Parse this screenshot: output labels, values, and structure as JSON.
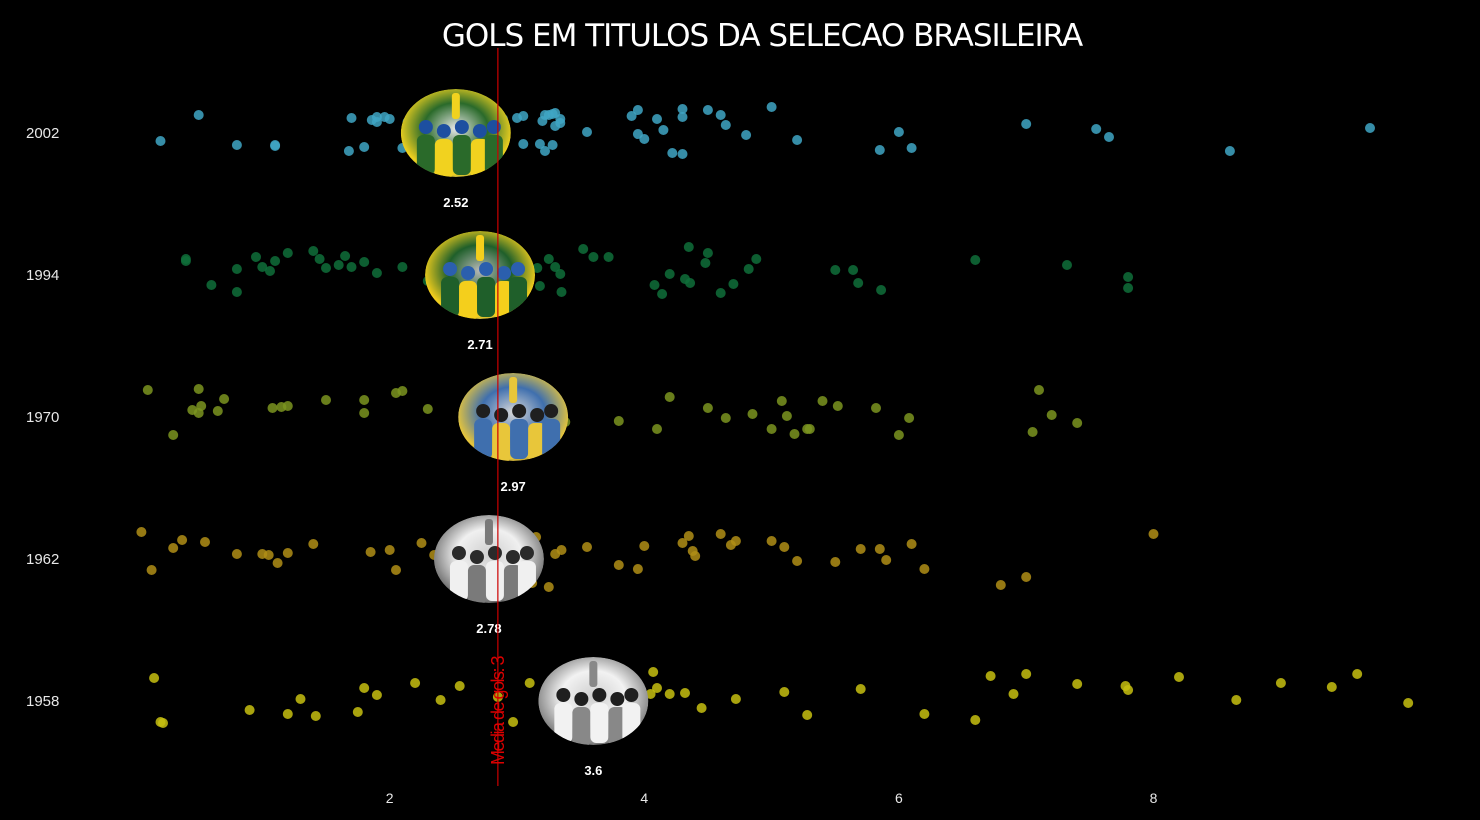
{
  "chart_data": {
    "type": "scatter",
    "title": "GOLS EM TITULOS DA SELECAO BRASILEIRA",
    "x_ticks": [
      2,
      4,
      6,
      8
    ],
    "xlim": [
      -0.55,
      10.25
    ],
    "reference_line": {
      "value": 2.85,
      "label": "Media de gols: 3",
      "color": "#cc0000"
    },
    "series": [
      {
        "name": "2002",
        "color": "#3fa6c4",
        "mean": 2.52,
        "mean_label": "2.52",
        "photo_icon": "trophy-lift-photo-icon",
        "photo_colors": [
          "#2a6a2a",
          "#f1d21f",
          "#1d4fa0",
          "#e9e9e9"
        ],
        "points": [
          [
            0.5,
            -18
          ],
          [
            0.2,
            8
          ],
          [
            0.8,
            12
          ],
          [
            1.7,
            -15
          ],
          [
            1.96,
            -16
          ],
          [
            1.1,
            13
          ],
          [
            1.68,
            18
          ],
          [
            2.0,
            -14
          ],
          [
            1.8,
            14
          ],
          [
            1.9,
            -11
          ],
          [
            2.1,
            15
          ],
          [
            2.2,
            13
          ],
          [
            2.6,
            10
          ],
          [
            2.4,
            14
          ],
          [
            2.3,
            -3
          ],
          [
            2.5,
            11
          ],
          [
            2.7,
            12
          ],
          [
            2.84,
            19
          ],
          [
            3.05,
            11
          ],
          [
            2.83,
            -15
          ],
          [
            3.05,
            -17
          ],
          [
            3.0,
            -15
          ],
          [
            3.3,
            -20
          ],
          [
            2.89,
            -14
          ],
          [
            3.25,
            -18
          ],
          [
            3.28,
            -19
          ],
          [
            3.3,
            -7
          ],
          [
            3.18,
            11
          ],
          [
            2.84,
            14
          ],
          [
            3.22,
            -18
          ],
          [
            3.2,
            -12
          ],
          [
            3.28,
            12
          ],
          [
            3.34,
            -14
          ],
          [
            3.22,
            18
          ],
          [
            3.34,
            -10
          ],
          [
            2.84,
            13
          ],
          [
            1.86,
            -13
          ],
          [
            2.14,
            -11
          ],
          [
            1.9,
            -16
          ],
          [
            1.1,
            12
          ],
          [
            4.3,
            -16
          ],
          [
            4.3,
            -24
          ],
          [
            4.6,
            -18
          ],
          [
            3.55,
            -1
          ],
          [
            2.54,
            21
          ],
          [
            2.54,
            -15
          ],
          [
            4.22,
            20
          ],
          [
            5.0,
            -26
          ],
          [
            4.5,
            -23
          ],
          [
            4.64,
            -8
          ],
          [
            3.95,
            -23
          ],
          [
            4.1,
            -14
          ],
          [
            4.0,
            6
          ],
          [
            4.3,
            21
          ],
          [
            3.95,
            1
          ],
          [
            4.15,
            -3
          ],
          [
            3.9,
            -17
          ],
          [
            6.0,
            -1
          ],
          [
            6.1,
            15
          ],
          [
            4.8,
            2
          ],
          [
            7.0,
            -9
          ],
          [
            5.85,
            17
          ],
          [
            5.2,
            7
          ],
          [
            8.6,
            18
          ],
          [
            9.7,
            -5
          ],
          [
            7.55,
            -4
          ],
          [
            7.65,
            4
          ]
        ]
      },
      {
        "name": "1994",
        "color": "#0f6f3a",
        "mean": 2.71,
        "mean_label": "2.71",
        "photo_icon": "team-celebration-photo-icon",
        "photo_colors": [
          "#1f5f2a",
          "#f4cf1c",
          "#2b5fae",
          "#b9b9b9"
        ],
        "points": [
          [
            0.4,
            -14
          ],
          [
            0.8,
            -6
          ],
          [
            1.2,
            -22
          ],
          [
            1.0,
            -8
          ],
          [
            0.6,
            10
          ],
          [
            1.9,
            -2
          ],
          [
            0.8,
            17
          ],
          [
            1.1,
            -14
          ],
          [
            1.5,
            -7
          ],
          [
            1.45,
            -16
          ],
          [
            1.8,
            -13
          ],
          [
            0.4,
            -16
          ],
          [
            0.95,
            -18
          ],
          [
            1.4,
            -24
          ],
          [
            1.06,
            -4
          ],
          [
            1.65,
            -19
          ],
          [
            1.7,
            -8
          ],
          [
            2.1,
            -8
          ],
          [
            1.6,
            -10
          ],
          [
            2.62,
            -15
          ],
          [
            2.58,
            -12
          ],
          [
            2.52,
            -24
          ],
          [
            2.3,
            6
          ],
          [
            2.72,
            20
          ],
          [
            2.54,
            -5
          ],
          [
            2.92,
            -7
          ],
          [
            2.8,
            -19
          ],
          [
            2.82,
            -18
          ],
          [
            2.95,
            -14
          ],
          [
            3.0,
            -15
          ],
          [
            3.25,
            -16
          ],
          [
            3.52,
            -26
          ],
          [
            3.3,
            -8
          ],
          [
            3.34,
            -1
          ],
          [
            3.18,
            11
          ],
          [
            3.6,
            -18
          ],
          [
            3.35,
            17
          ],
          [
            3.16,
            -7
          ],
          [
            3.72,
            -18
          ],
          [
            4.6,
            18
          ],
          [
            4.5,
            -22
          ],
          [
            4.48,
            -12
          ],
          [
            4.32,
            4
          ],
          [
            4.08,
            10
          ],
          [
            4.14,
            19
          ],
          [
            4.2,
            -1
          ],
          [
            4.35,
            -28
          ],
          [
            4.36,
            8
          ],
          [
            4.7,
            9
          ],
          [
            4.82,
            -6
          ],
          [
            4.88,
            -16
          ],
          [
            5.5,
            -5
          ],
          [
            5.64,
            -5
          ],
          [
            5.68,
            8
          ],
          [
            5.86,
            15
          ],
          [
            6.6,
            -15
          ],
          [
            7.8,
            13
          ],
          [
            7.32,
            -10
          ],
          [
            7.8,
            2
          ]
        ]
      },
      {
        "name": "1970",
        "color": "#7b9420",
        "mean": 2.97,
        "mean_label": "2.97",
        "photo_icon": "pele-shoulders-photo-icon",
        "photo_colors": [
          "#3f6fae",
          "#e8c63a",
          "#1f1f1f",
          "#d8d8d8"
        ],
        "points": [
          [
            0.65,
            -6
          ],
          [
            0.52,
            -11
          ],
          [
            0.3,
            18
          ],
          [
            0.5,
            -4
          ],
          [
            0.1,
            -27
          ],
          [
            0.45,
            -7
          ],
          [
            0.7,
            -18
          ],
          [
            0.5,
            -28
          ],
          [
            1.2,
            -11
          ],
          [
            1.15,
            -10
          ],
          [
            1.5,
            -17
          ],
          [
            1.08,
            -9
          ],
          [
            1.8,
            -17
          ],
          [
            2.05,
            -24
          ],
          [
            1.8,
            -4
          ],
          [
            2.1,
            -26
          ],
          [
            2.3,
            -8
          ],
          [
            2.75,
            -19
          ],
          [
            2.72,
            14
          ],
          [
            2.95,
            -18
          ],
          [
            2.95,
            -18
          ],
          [
            2.82,
            -2
          ],
          [
            3.08,
            -14
          ],
          [
            3.13,
            -9
          ],
          [
            3.18,
            -3
          ],
          [
            3.38,
            5
          ],
          [
            3.8,
            4
          ],
          [
            4.1,
            12
          ],
          [
            4.5,
            -9
          ],
          [
            4.2,
            -20
          ],
          [
            4.64,
            1
          ],
          [
            4.85,
            -3
          ],
          [
            5.0,
            12
          ],
          [
            5.12,
            -1
          ],
          [
            5.08,
            -16
          ],
          [
            5.28,
            12
          ],
          [
            5.18,
            17
          ],
          [
            5.3,
            12
          ],
          [
            5.4,
            -16
          ],
          [
            5.52,
            -11
          ],
          [
            5.82,
            -9
          ],
          [
            6.08,
            1
          ],
          [
            6.0,
            18
          ],
          [
            7.05,
            15
          ],
          [
            7.1,
            -27
          ],
          [
            7.2,
            -2
          ],
          [
            7.4,
            6
          ]
        ]
      },
      {
        "name": "1962",
        "color": "#b08e16",
        "mean": 2.78,
        "mean_label": "2.78",
        "photo_icon": "trophy-raise-bw-photo-icon",
        "photo_colors": [
          "#f0f0f0",
          "#7a7a7a",
          "#2a2a2a",
          "#cfcfcf"
        ],
        "points": [
          [
            0.05,
            -27
          ],
          [
            0.55,
            -17
          ],
          [
            0.37,
            -19
          ],
          [
            0.13,
            11
          ],
          [
            0.3,
            -11
          ],
          [
            0.8,
            -5
          ],
          [
            1.0,
            -5
          ],
          [
            1.12,
            4
          ],
          [
            1.05,
            -4
          ],
          [
            1.2,
            -6
          ],
          [
            1.4,
            -15
          ],
          [
            1.85,
            -7
          ],
          [
            2.0,
            -9
          ],
          [
            2.05,
            11
          ],
          [
            2.25,
            -16
          ],
          [
            2.35,
            -4
          ],
          [
            2.72,
            6
          ],
          [
            2.86,
            10
          ],
          [
            2.8,
            -8
          ],
          [
            2.95,
            -24
          ],
          [
            3.0,
            -4
          ],
          [
            3.15,
            -22
          ],
          [
            3.12,
            24
          ],
          [
            3.25,
            28
          ],
          [
            3.35,
            -9
          ],
          [
            3.55,
            -12
          ],
          [
            3.3,
            -5
          ],
          [
            3.8,
            6
          ],
          [
            3.95,
            10
          ],
          [
            4.0,
            -13
          ],
          [
            4.3,
            -16
          ],
          [
            4.35,
            -23
          ],
          [
            4.38,
            -8
          ],
          [
            4.4,
            -3
          ],
          [
            4.6,
            -25
          ],
          [
            4.68,
            -14
          ],
          [
            4.72,
            -18
          ],
          [
            5.0,
            -18
          ],
          [
            5.1,
            -12
          ],
          [
            5.2,
            2
          ],
          [
            5.5,
            3
          ],
          [
            5.7,
            -10
          ],
          [
            5.9,
            1
          ],
          [
            5.85,
            -10
          ],
          [
            6.1,
            -15
          ],
          [
            6.2,
            10
          ],
          [
            6.8,
            26
          ],
          [
            7.0,
            18
          ],
          [
            8.0,
            -25
          ]
        ]
      },
      {
        "name": "1958",
        "color": "#c7bf10",
        "mean": 3.6,
        "mean_label": "3.6",
        "photo_icon": "pele-waving-bw-photo-icon",
        "photo_colors": [
          "#f2f2f2",
          "#888888",
          "#1f1f1f",
          "#cfcfcf"
        ],
        "points": [
          [
            0.15,
            -23
          ],
          [
            0.22,
            22
          ],
          [
            0.9,
            9
          ],
          [
            0.2,
            21
          ],
          [
            1.2,
            13
          ],
          [
            1.3,
            -2
          ],
          [
            1.42,
            15
          ],
          [
            1.75,
            11
          ],
          [
            1.8,
            -13
          ],
          [
            1.9,
            -6
          ],
          [
            2.2,
            -18
          ],
          [
            2.4,
            -1
          ],
          [
            2.55,
            -15
          ],
          [
            2.85,
            -4
          ],
          [
            2.97,
            21
          ],
          [
            3.45,
            -15
          ],
          [
            3.1,
            -18
          ],
          [
            3.55,
            -27
          ],
          [
            3.3,
            1
          ],
          [
            3.55,
            -29
          ],
          [
            4.07,
            -29
          ],
          [
            4.1,
            -13
          ],
          [
            4.2,
            -7
          ],
          [
            4.05,
            -7
          ],
          [
            4.45,
            7
          ],
          [
            4.32,
            -8
          ],
          [
            4.72,
            -2
          ],
          [
            5.1,
            -9
          ],
          [
            5.28,
            14
          ],
          [
            5.7,
            -12
          ],
          [
            6.6,
            19
          ],
          [
            6.2,
            13
          ],
          [
            6.9,
            -7
          ],
          [
            6.72,
            -25
          ],
          [
            7.0,
            -27
          ],
          [
            7.4,
            -17
          ],
          [
            7.8,
            -11
          ],
          [
            7.78,
            -15
          ],
          [
            8.2,
            -24
          ],
          [
            8.65,
            -1
          ],
          [
            9.0,
            -18
          ],
          [
            9.4,
            -14
          ],
          [
            9.6,
            -27
          ],
          [
            10.0,
            2
          ]
        ]
      }
    ]
  }
}
